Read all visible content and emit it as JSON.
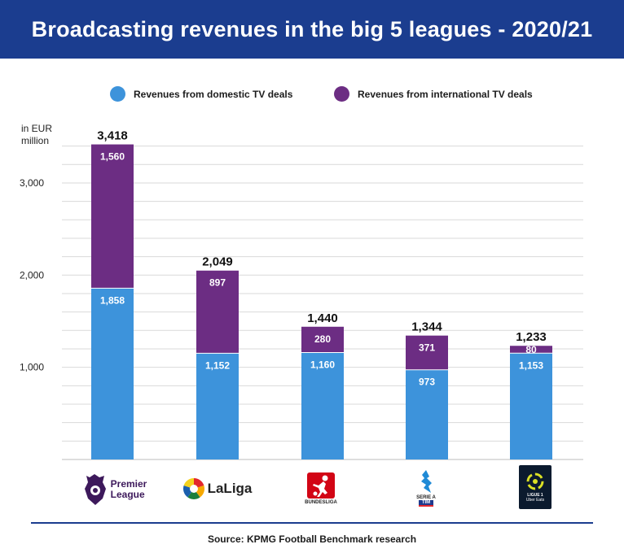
{
  "title": "Broadcasting revenues in the big 5 leagues - 2020/21",
  "legend": {
    "domestic": "Revenues from domestic TV deals",
    "international": "Revenues from international TV deals"
  },
  "unit_line1": "in EUR",
  "unit_line2": "million",
  "source": "Source: KPMG Football Benchmark research",
  "colors": {
    "header": "#1b3d8f",
    "domestic": "#3d93db",
    "international": "#6c2d83",
    "grid": "#d9d9d9"
  },
  "logos": {
    "premier_league_line1": "Premier",
    "premier_league_line2": "League",
    "laliga": "LaLiga",
    "bundesliga": "BUNDESLIGA",
    "serie_a_line1": "SERIE A",
    "serie_a_line2": "TIM",
    "ligue1_line1": "LIGUE 1",
    "ligue1_line2": "Uber Eats"
  },
  "chart_data": {
    "type": "bar",
    "stacked": true,
    "categories": [
      "Premier League",
      "LaLiga",
      "Bundesliga",
      "Serie A",
      "Ligue 1"
    ],
    "series": [
      {
        "name": "Revenues from domestic TV deals",
        "values": [
          1858,
          1152,
          1160,
          973,
          1153
        ],
        "labels": [
          "1,858",
          "1,152",
          "1,160",
          "973",
          "1,153"
        ]
      },
      {
        "name": "Revenues from international TV deals",
        "values": [
          1560,
          897,
          280,
          371,
          80
        ],
        "labels": [
          "1,560",
          "897",
          "280",
          "371",
          "80"
        ]
      }
    ],
    "totals": [
      3418,
      2049,
      1440,
      1344,
      1233
    ],
    "total_labels": [
      "3,418",
      "2,049",
      "1,440",
      "1,344",
      "1,233"
    ],
    "yticks": [
      1000,
      2000,
      3000
    ],
    "ytick_labels": [
      "1,000",
      "2,000",
      "3,000"
    ],
    "ylim": [
      0,
      3500
    ],
    "grid": true,
    "legend_position": "top"
  }
}
